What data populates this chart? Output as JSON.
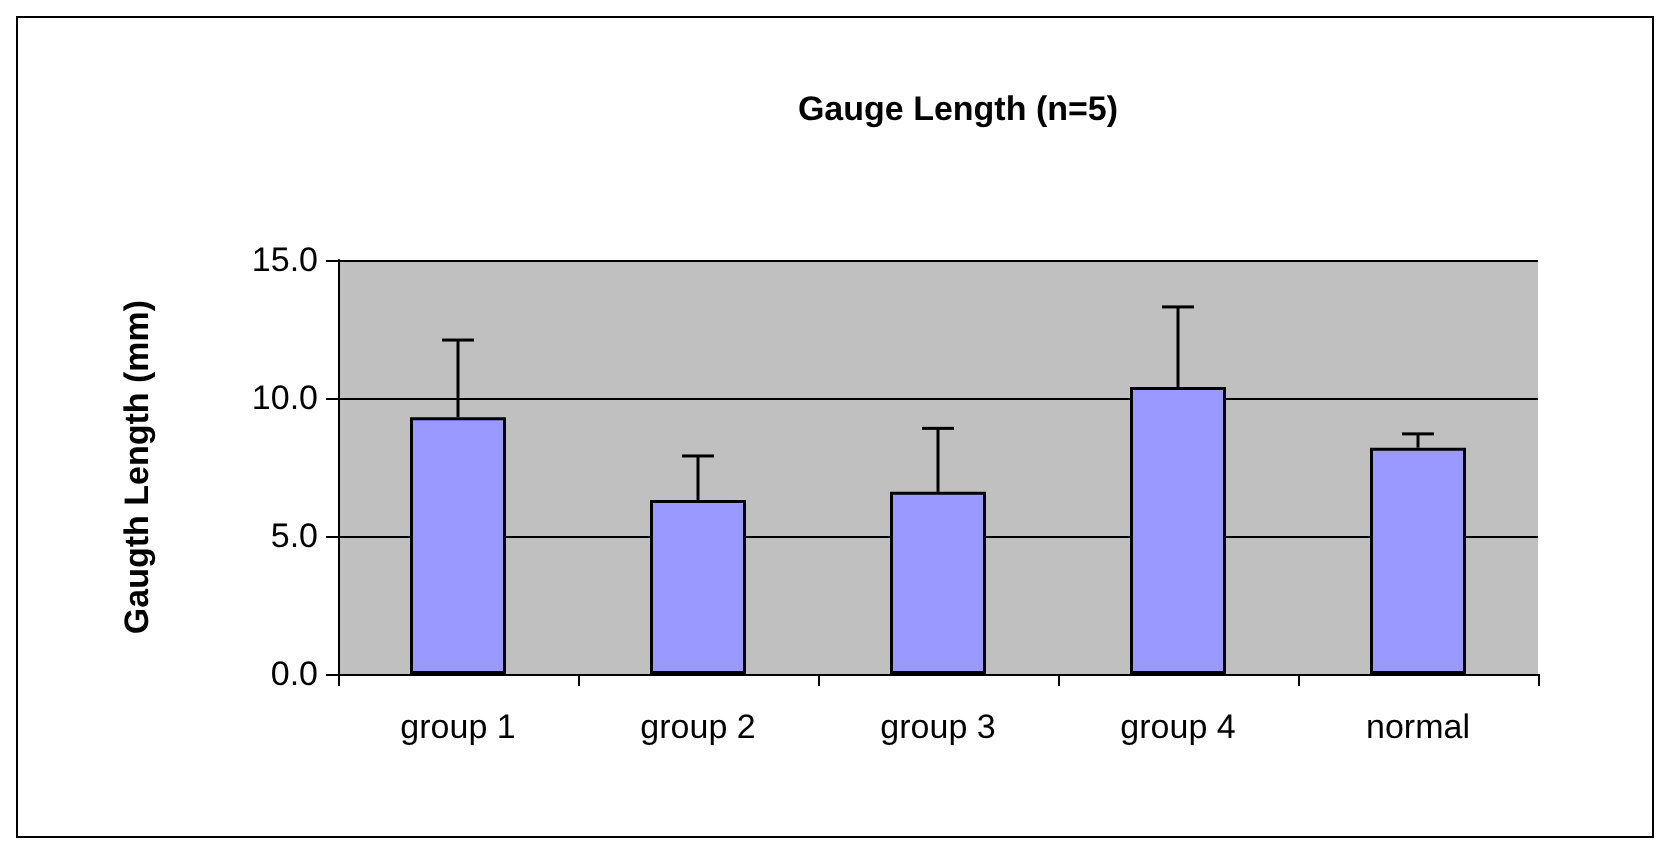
{
  "chart_data": {
    "type": "bar",
    "title": "Gauge Length (n=5)",
    "ylabel": "Gaugth Length (mm)",
    "categories": [
      "group 1",
      "group 2",
      "group 3",
      "group 4",
      "normal"
    ],
    "values": [
      9.3,
      6.3,
      6.6,
      10.4,
      8.2
    ],
    "errors": [
      [
        9.3,
        12.1
      ],
      [
        6.3,
        7.9
      ],
      [
        6.6,
        8.9
      ],
      [
        10.4,
        13.3
      ],
      [
        8.2,
        8.7
      ]
    ],
    "color": "#9999ff",
    "ylim": [
      0,
      15
    ],
    "yticks": [
      {
        "value": 0,
        "label": "0.0"
      },
      {
        "value": 5,
        "label": "5.0"
      },
      {
        "value": 10,
        "label": "10.0"
      },
      {
        "value": 15,
        "label": "15.0"
      }
    ],
    "grid": "y"
  }
}
